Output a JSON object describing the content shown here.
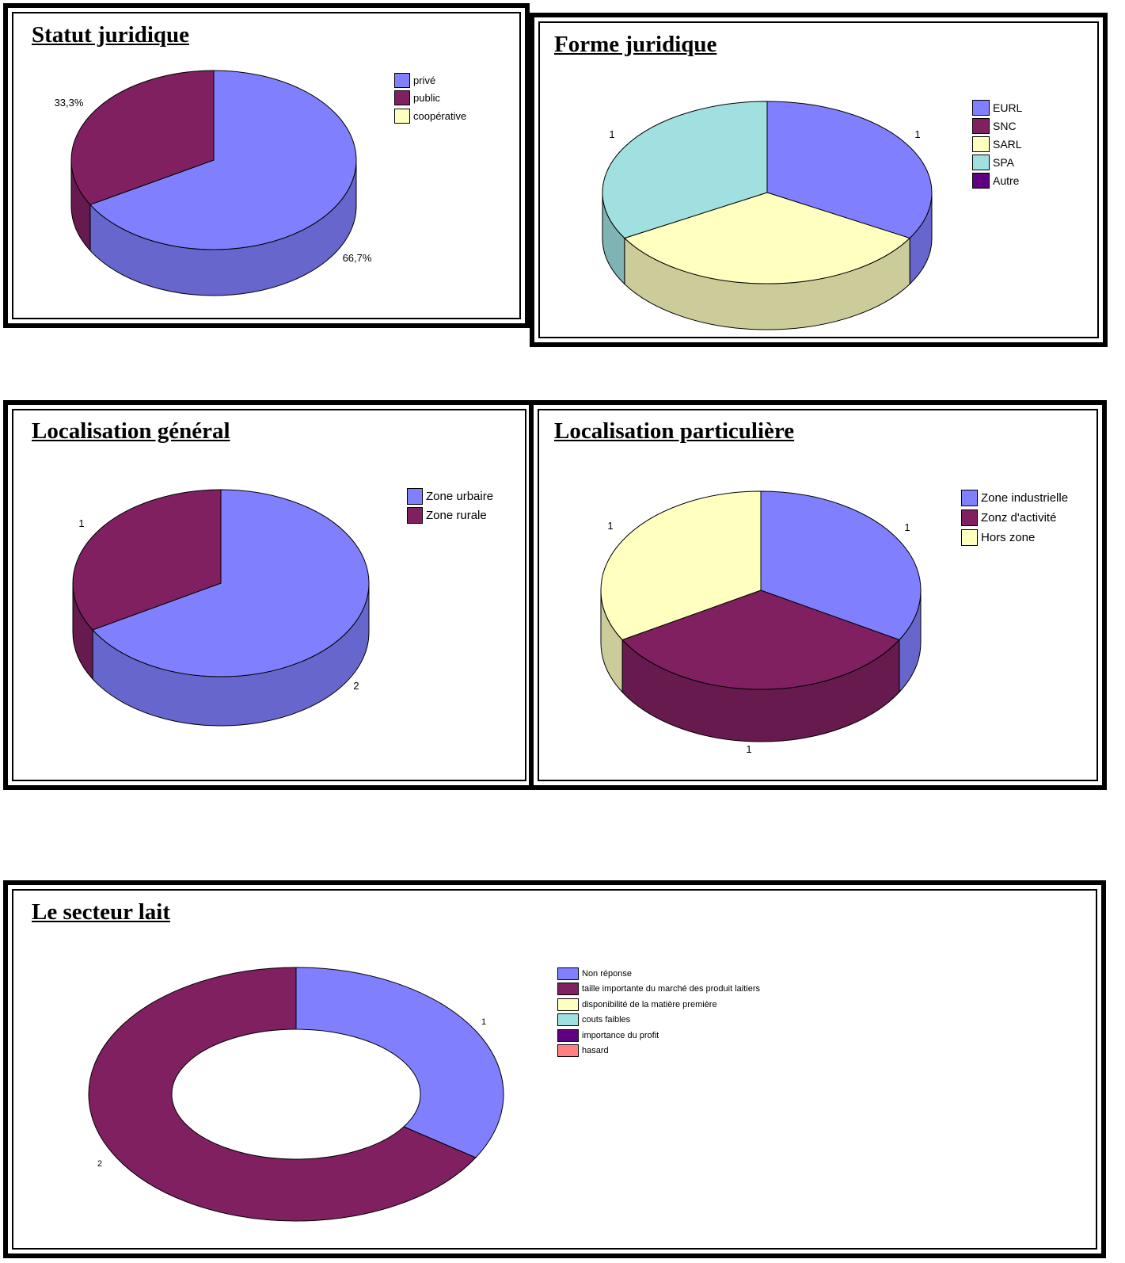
{
  "chart_data": [
    {
      "id": "statut",
      "type": "pie",
      "title": "Statut juridique",
      "categories": [
        "privé",
        "public",
        "coopérative"
      ],
      "values": [
        66.7,
        33.3,
        0
      ],
      "data_labels": [
        "66,7%",
        "33,3%",
        ""
      ],
      "colors": [
        "#8080ff",
        "#802060",
        "#ffffc0"
      ],
      "legend_position": "right"
    },
    {
      "id": "forme",
      "type": "pie",
      "title": "Forme juridique",
      "categories": [
        "EURL",
        "SNC",
        "SARL",
        "SPA",
        "Autre"
      ],
      "values": [
        1,
        0,
        1,
        1,
        0
      ],
      "data_labels": [
        "1",
        "",
        "",
        "1",
        ""
      ],
      "colors": [
        "#8080ff",
        "#802060",
        "#ffffc0",
        "#a0e0e0",
        "#600080"
      ],
      "legend_position": "right"
    },
    {
      "id": "locgen",
      "type": "pie",
      "title": "Localisation général",
      "categories": [
        "Zone urbaire",
        "Zone rurale"
      ],
      "values": [
        2,
        1
      ],
      "data_labels": [
        "2",
        "1"
      ],
      "colors": [
        "#8080ff",
        "#802060"
      ],
      "legend_position": "right"
    },
    {
      "id": "locpart",
      "type": "pie",
      "title": "Localisation particulière",
      "categories": [
        "Zone industrielle",
        "Zonz d'activité",
        "Hors zone"
      ],
      "values": [
        1,
        1,
        1
      ],
      "data_labels": [
        "1",
        "1",
        "1"
      ],
      "colors": [
        "#8080ff",
        "#802060",
        "#ffffc0"
      ],
      "legend_position": "right"
    },
    {
      "id": "lait",
      "type": "pie",
      "title": "Le secteur lait",
      "categories": [
        "Non réponse",
        "taille importante du marché des produit laitiers",
        "disponibilité de la matière première",
        "couts faibles",
        "importance du profit",
        "hasard"
      ],
      "values": [
        1,
        2,
        0,
        0,
        0,
        0
      ],
      "data_labels": [
        "1",
        "2",
        "",
        "",
        "",
        ""
      ],
      "colors": [
        "#8080ff",
        "#802060",
        "#ffffc0",
        "#a0e0e0",
        "#600080",
        "#ff8080"
      ],
      "legend_position": "right"
    }
  ]
}
